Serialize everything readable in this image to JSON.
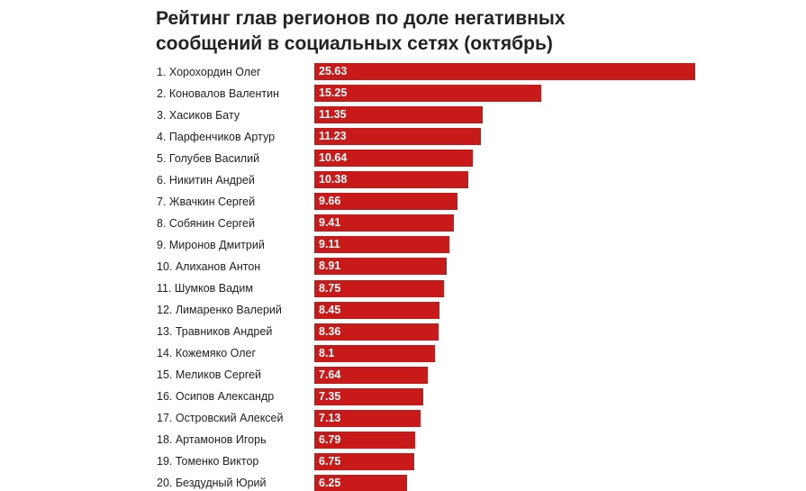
{
  "chart_data": {
    "type": "bar",
    "orientation": "horizontal",
    "title": "Рейтинг глав регионов по доле негативных сообщений в социальных сетях (октябрь)",
    "categories": [
      "1. Хорохордин Олег",
      "2. Коновалов Валентин",
      "3. Хасиков Бату",
      "4. Парфенчиков Артур",
      "5. Голубев Василий",
      "6. Никитин Андрей",
      "7. Жвачкин Сергей",
      "8. Собянин Сергей",
      "9. Миронов Дмитрий",
      "10. Алиханов Антон",
      "11. Шумков Вадим",
      "12. Лимаренко Валерий",
      "13. Травников Андрей",
      "14. Кожемяко Олег",
      "15. Меликов Сергей",
      "16. Осипов Александр",
      "17. Островский Алексей",
      "18. Артамонов Игорь",
      "19. Томенко Виктор",
      "20. Бездудный Юрий"
    ],
    "values": [
      25.63,
      15.25,
      11.35,
      11.23,
      10.64,
      10.38,
      9.66,
      9.41,
      9.11,
      8.91,
      8.75,
      8.45,
      8.36,
      8.1,
      7.64,
      7.35,
      7.13,
      6.79,
      6.75,
      6.25
    ],
    "value_labels": [
      "25.63",
      "15.25",
      "11.35",
      "11.23",
      "10.64",
      "10.38",
      "9.66",
      "9.41",
      "9.11",
      "8.91",
      "8.75",
      "8.45",
      "8.36",
      "8.1",
      "7.64",
      "7.35",
      "7.13",
      "6.79",
      "6.75",
      "6.25"
    ],
    "xlim": [
      0,
      25.63
    ],
    "bar_color": "#c91a1a",
    "value_label_color": "#ffffff",
    "grid": false,
    "legend": "none"
  }
}
